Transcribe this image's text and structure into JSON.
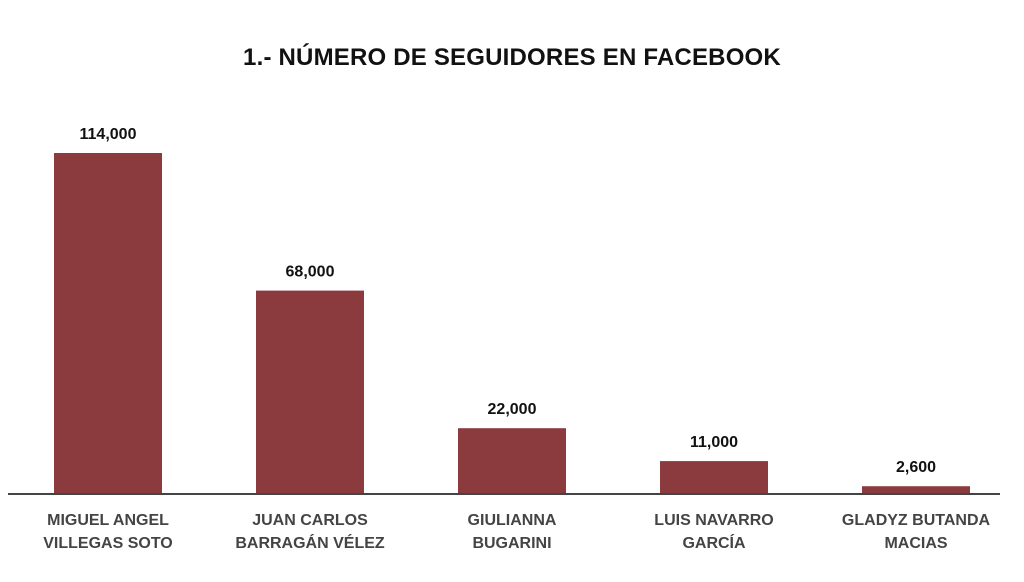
{
  "chart_data": {
    "type": "bar",
    "title": "1.- NÚMERO DE SEGUIDORES EN FACEBOOK",
    "categories": [
      [
        "MIGUEL ANGEL",
        "VILLEGAS SOTO"
      ],
      [
        "JUAN CARLOS",
        "BARRAGÁN VÉLEZ"
      ],
      [
        "GIULIANNA",
        "BUGARINI"
      ],
      [
        "LUIS NAVARRO",
        "GARCÍA"
      ],
      [
        "GLADYZ BUTANDA",
        "MACIAS"
      ]
    ],
    "values": [
      114000,
      68000,
      22000,
      11000,
      2600
    ],
    "value_labels": [
      "114,000",
      "68,000",
      "22,000",
      "11,000",
      "2,600"
    ],
    "ylim": [
      0,
      114000
    ],
    "grid": false,
    "bar_color": "#8b3a3e",
    "axis_color": "#444444"
  }
}
